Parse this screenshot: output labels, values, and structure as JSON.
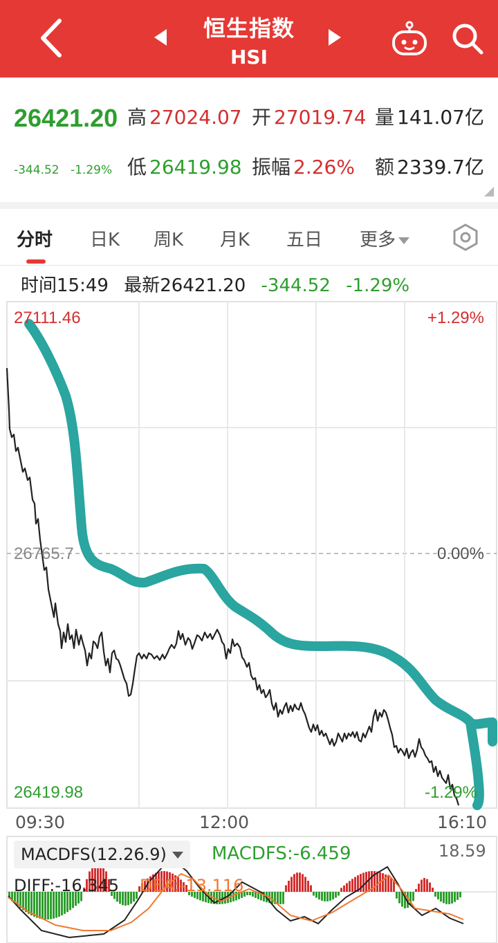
{
  "header": {
    "title": "恒生指数",
    "subtitle": "HSI",
    "bg_color": "#e53935"
  },
  "quote": {
    "price": "26421.20",
    "change": "-344.52",
    "change_pct": "-1.29%",
    "high_label": "高",
    "high": "27024.07",
    "open_label": "开",
    "open": "27019.74",
    "volume_label": "量",
    "volume": "141.07亿",
    "low_label": "低",
    "low": "26419.98",
    "amplitude_label": "振幅",
    "amplitude": "2.26%",
    "amount_label": "额",
    "amount": "2339.7亿"
  },
  "tabs": [
    {
      "label": "分时",
      "active": true
    },
    {
      "label": "日K"
    },
    {
      "label": "周K"
    },
    {
      "label": "月K"
    },
    {
      "label": "五日"
    },
    {
      "label": "更多"
    }
  ],
  "info": {
    "time": "时间15:49",
    "latest": "最新26421.20",
    "change": "-344.52",
    "pct": "-1.29%"
  },
  "axis": {
    "top_price": "27111.46",
    "mid_price": "26765.7",
    "bottom_price": "26419.98",
    "top_pct": "+1.29%",
    "mid_pct": "0.00%",
    "bottom_pct": "-1.29%",
    "times": [
      "09:30",
      "12:00",
      "16:10"
    ]
  },
  "macd": {
    "selector": "MACDFS(12.26.9)",
    "value": "MACDFS:-6.459",
    "max": "18.59",
    "diff": "DIFF:-16.345",
    "dea": "DEA:-13.116"
  },
  "colors": {
    "up": "#d32f2f",
    "down": "#2e9e2e",
    "annotation": "#2aa5a0"
  }
}
